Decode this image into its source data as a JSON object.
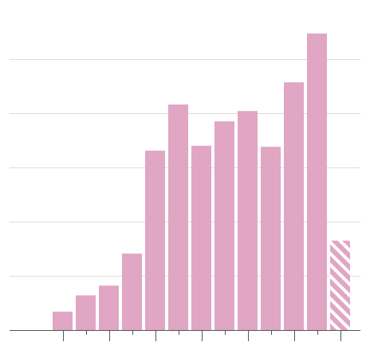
{
  "chart_data": {
    "type": "bar",
    "title": "",
    "xlabel": "",
    "ylabel": "",
    "ylim": [
      0,
      6
    ],
    "y_gridlines": [
      1,
      2,
      3,
      4,
      5
    ],
    "grid": "horizontal",
    "legend": "none",
    "bar_color": "#e0a6c4",
    "gridline_color": "#dddddd",
    "axis_color": "#555555",
    "values": [
      0.34,
      0.64,
      0.82,
      1.41,
      3.31,
      4.16,
      3.4,
      3.85,
      4.04,
      3.38,
      4.57,
      5.47,
      1.65
    ],
    "hatched": [
      false,
      false,
      false,
      false,
      false,
      false,
      false,
      false,
      false,
      false,
      false,
      false,
      true
    ],
    "tick_count": 13
  }
}
